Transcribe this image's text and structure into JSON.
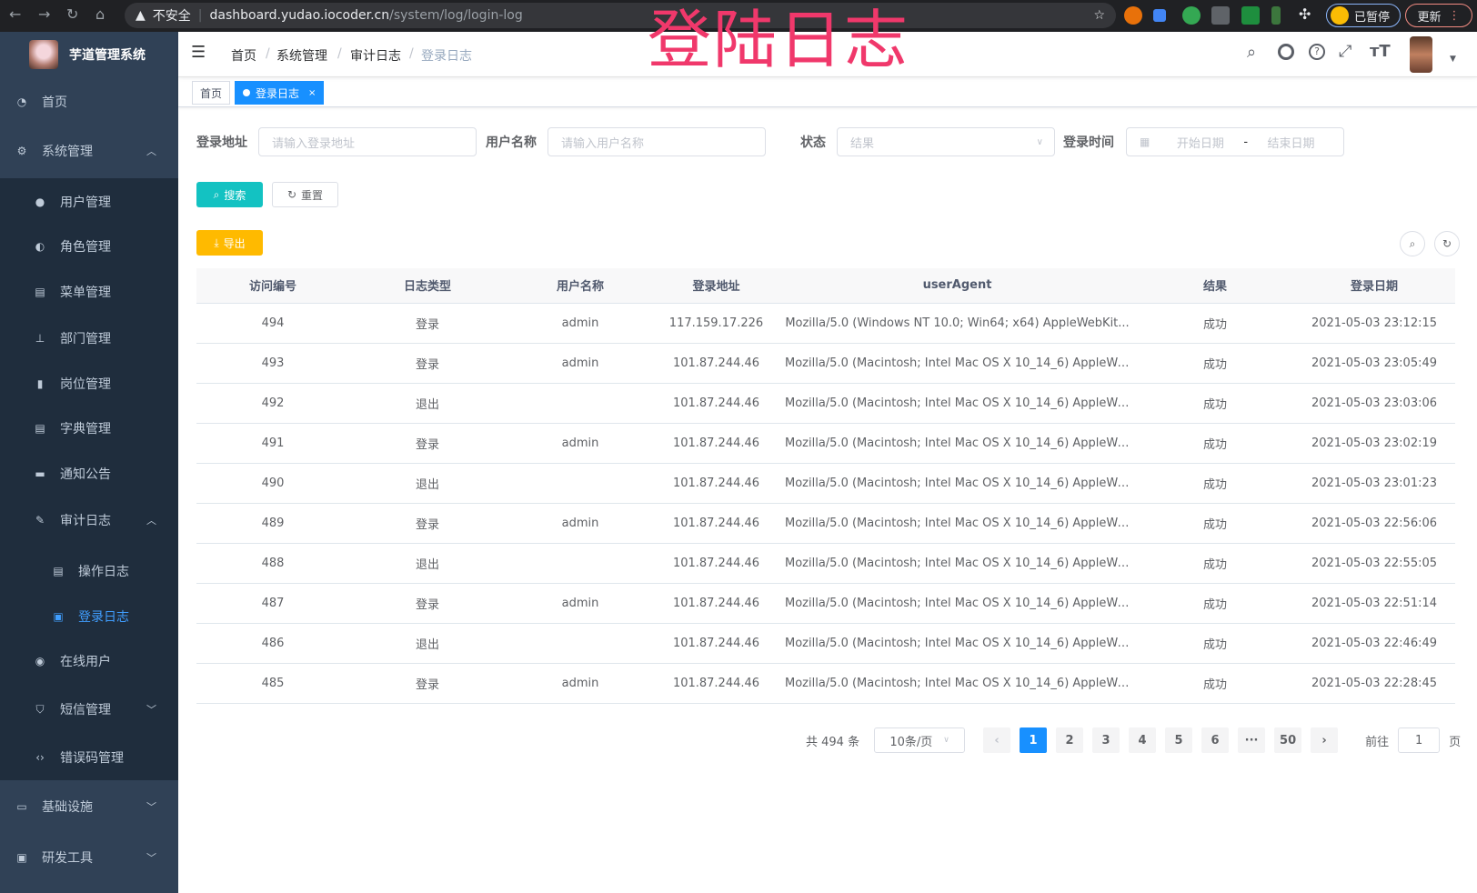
{
  "browser": {
    "insecure": "不安全",
    "host": "dashboard.yudao.iocoder.cn",
    "path": "/system/log/login-log",
    "paused": "已暂停",
    "update": "更新"
  },
  "overlay_title": "登陆日志",
  "app": {
    "title": "芋道管理系统"
  },
  "sidebar": {
    "items": [
      {
        "label": "首页",
        "icon": "dashboard-icon"
      },
      {
        "label": "系统管理",
        "icon": "gear-icon",
        "expanded": true
      },
      {
        "label": "用户管理",
        "icon": "user-icon"
      },
      {
        "label": "角色管理",
        "icon": "peoples-icon"
      },
      {
        "label": "菜单管理",
        "icon": "tree-table-icon"
      },
      {
        "label": "部门管理",
        "icon": "tree-icon"
      },
      {
        "label": "岗位管理",
        "icon": "post-icon"
      },
      {
        "label": "字典管理",
        "icon": "dict-icon"
      },
      {
        "label": "通知公告",
        "icon": "message-icon"
      },
      {
        "label": "审计日志",
        "icon": "log-icon",
        "expanded": true
      },
      {
        "label": "操作日志",
        "icon": "form-icon"
      },
      {
        "label": "登录日志",
        "icon": "logininfor-icon",
        "active": true
      },
      {
        "label": "在线用户",
        "icon": "online-icon"
      },
      {
        "label": "短信管理",
        "icon": "shield-icon"
      },
      {
        "label": "错误码管理",
        "icon": "code-icon"
      },
      {
        "label": "基础设施",
        "icon": "monitor-icon"
      },
      {
        "label": "研发工具",
        "icon": "tool-icon"
      }
    ]
  },
  "breadcrumb": [
    "首页",
    "系统管理",
    "审计日志",
    "登录日志"
  ],
  "tags": [
    "首页",
    "登录日志"
  ],
  "search": {
    "ip_label": "登录地址",
    "ip_placeholder": "请输入登录地址",
    "user_label": "用户名称",
    "user_placeholder": "请输入用户名称",
    "status_label": "状态",
    "status_placeholder": "结果",
    "time_label": "登录时间",
    "start_placeholder": "开始日期",
    "sep": "-",
    "end_placeholder": "结束日期",
    "search_btn": "搜索",
    "reset_btn": "重置",
    "export_btn": "导出"
  },
  "table": {
    "columns": [
      "访问编号",
      "日志类型",
      "用户名称",
      "登录地址",
      "userAgent",
      "结果",
      "登录日期"
    ],
    "rows": [
      [
        "494",
        "登录",
        "admin",
        "117.159.17.226",
        "Mozilla/5.0 (Windows NT 10.0; Win64; x64) AppleWebKit...",
        "成功",
        "2021-05-03 23:12:15"
      ],
      [
        "493",
        "登录",
        "admin",
        "101.87.244.46",
        "Mozilla/5.0 (Macintosh; Intel Mac OS X 10_14_6) AppleWe...",
        "成功",
        "2021-05-03 23:05:49"
      ],
      [
        "492",
        "退出",
        "",
        "101.87.244.46",
        "Mozilla/5.0 (Macintosh; Intel Mac OS X 10_14_6) AppleWe...",
        "成功",
        "2021-05-03 23:03:06"
      ],
      [
        "491",
        "登录",
        "admin",
        "101.87.244.46",
        "Mozilla/5.0 (Macintosh; Intel Mac OS X 10_14_6) AppleWe...",
        "成功",
        "2021-05-03 23:02:19"
      ],
      [
        "490",
        "退出",
        "",
        "101.87.244.46",
        "Mozilla/5.0 (Macintosh; Intel Mac OS X 10_14_6) AppleWe...",
        "成功",
        "2021-05-03 23:01:23"
      ],
      [
        "489",
        "登录",
        "admin",
        "101.87.244.46",
        "Mozilla/5.0 (Macintosh; Intel Mac OS X 10_14_6) AppleWe...",
        "成功",
        "2021-05-03 22:56:06"
      ],
      [
        "488",
        "退出",
        "",
        "101.87.244.46",
        "Mozilla/5.0 (Macintosh; Intel Mac OS X 10_14_6) AppleWe...",
        "成功",
        "2021-05-03 22:55:05"
      ],
      [
        "487",
        "登录",
        "admin",
        "101.87.244.46",
        "Mozilla/5.0 (Macintosh; Intel Mac OS X 10_14_6) AppleWe...",
        "成功",
        "2021-05-03 22:51:14"
      ],
      [
        "486",
        "退出",
        "",
        "101.87.244.46",
        "Mozilla/5.0 (Macintosh; Intel Mac OS X 10_14_6) AppleWe...",
        "成功",
        "2021-05-03 22:46:49"
      ],
      [
        "485",
        "登录",
        "admin",
        "101.87.244.46",
        "Mozilla/5.0 (Macintosh; Intel Mac OS X 10_14_6) AppleWe...",
        "成功",
        "2021-05-03 22:28:45"
      ]
    ]
  },
  "pagination": {
    "total": "共 494 条",
    "page_size": "10条/页",
    "pages": [
      "1",
      "2",
      "3",
      "4",
      "5",
      "6",
      "···",
      "50"
    ],
    "current": "1",
    "goto_label": "前往",
    "goto_value": "1",
    "goto_suffix": "页"
  },
  "colors": {
    "sidebar": "#304156",
    "submenu": "#1f2d3d",
    "primary": "#1890ff",
    "search": "#13c2c2",
    "export": "#ffba00",
    "overlay": "#f0386b"
  }
}
